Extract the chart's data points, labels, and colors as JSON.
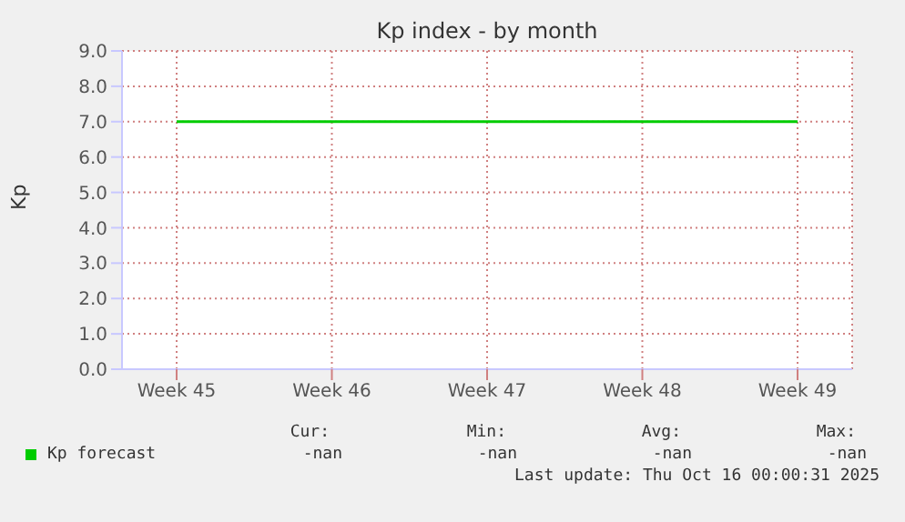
{
  "chart_data": {
    "type": "line",
    "title": "Kp index - by month",
    "ylabel": "Kp",
    "categories": [
      "Week 45",
      "Week 46",
      "Week 47",
      "Week 48",
      "Week 49"
    ],
    "series": [
      {
        "name": "Kp forecast",
        "color": "#00cc00",
        "values": [
          7,
          7,
          7,
          7,
          7
        ]
      }
    ],
    "ylim": [
      0,
      9
    ],
    "yticks": [
      {
        "value": 0,
        "label": "0.0"
      },
      {
        "value": 1,
        "label": "1.0"
      },
      {
        "value": 2,
        "label": "2.0"
      },
      {
        "value": 3,
        "label": "3.0"
      },
      {
        "value": 4,
        "label": "4.0"
      },
      {
        "value": 5,
        "label": "5.0"
      },
      {
        "value": 6,
        "label": "6.0"
      },
      {
        "value": 7,
        "label": "7.0"
      },
      {
        "value": 8,
        "label": "8.0"
      },
      {
        "value": 9,
        "label": "9.0"
      }
    ],
    "grid": true,
    "legend": "bottom",
    "marker": "none",
    "line_style": "solid",
    "annotations": [
      "Cur:",
      "Min:",
      "Avg:",
      "Max:",
      "-nan",
      "-nan",
      "-nan",
      "-nan",
      "Last update: Thu Oct 16 00:00:31 2025"
    ]
  }
}
